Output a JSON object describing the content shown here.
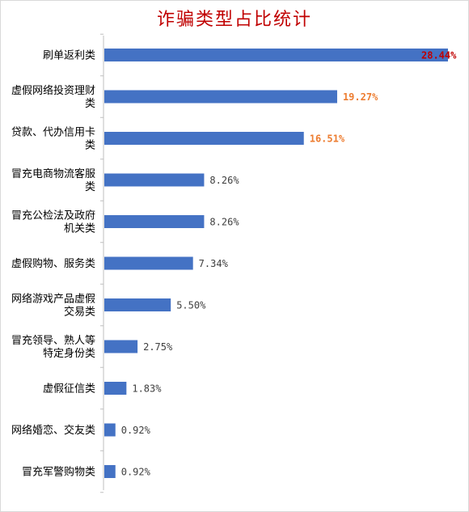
{
  "chart_data": {
    "type": "bar",
    "orientation": "horizontal",
    "title": "诈骗类型占比统计",
    "xlabel": "",
    "ylabel": "",
    "grid": false,
    "legend": "none",
    "unit": "%",
    "xlim": [
      0,
      28.44
    ],
    "categories": [
      "刷单返利类",
      "虚假网络投资理财类",
      "贷款、代办信用卡类",
      "冒充电商物流客服类",
      "冒充公检法及政府机关类",
      "虚假购物、服务类",
      "网络游戏产品虚假交易类",
      "冒充领导、熟人等特定身份类",
      "虚假征信类",
      "网络婚恋、交友类",
      "冒充军警购物类"
    ],
    "category_lines": [
      [
        "刷单返利类"
      ],
      [
        "虚假网络投资理财",
        "类"
      ],
      [
        "贷款、代办信用卡",
        "类"
      ],
      [
        "冒充电商物流客服",
        "类"
      ],
      [
        "冒充公检法及政府",
        "机关类"
      ],
      [
        "虚假购物、服务类"
      ],
      [
        "网络游戏产品虚假",
        "交易类"
      ],
      [
        "冒充领导、熟人等",
        "特定身份类"
      ],
      [
        "虚假征信类"
      ],
      [
        "网络婚恋、交友类"
      ],
      [
        "冒充军警购物类"
      ]
    ],
    "values": [
      28.44,
      19.27,
      16.51,
      8.26,
      8.26,
      7.34,
      5.5,
      2.75,
      1.83,
      0.92,
      0.92
    ],
    "data_labels": [
      "28.44%",
      "19.27%",
      "16.51%",
      "8.26%",
      "8.26%",
      "7.34%",
      "5.50%",
      "2.75%",
      "1.83%",
      "0.92%",
      "0.92%"
    ],
    "label_colors": [
      "#c00000",
      "#ed7d31",
      "#ed7d31",
      "#404040",
      "#404040",
      "#404040",
      "#404040",
      "#404040",
      "#404040",
      "#404040",
      "#404040"
    ],
    "label_bold": [
      true,
      true,
      true,
      false,
      false,
      false,
      false,
      false,
      false,
      false,
      false
    ],
    "bar_color": "#4472c4",
    "axis_color": "#bfbfbf",
    "title_color": "#c00000"
  }
}
